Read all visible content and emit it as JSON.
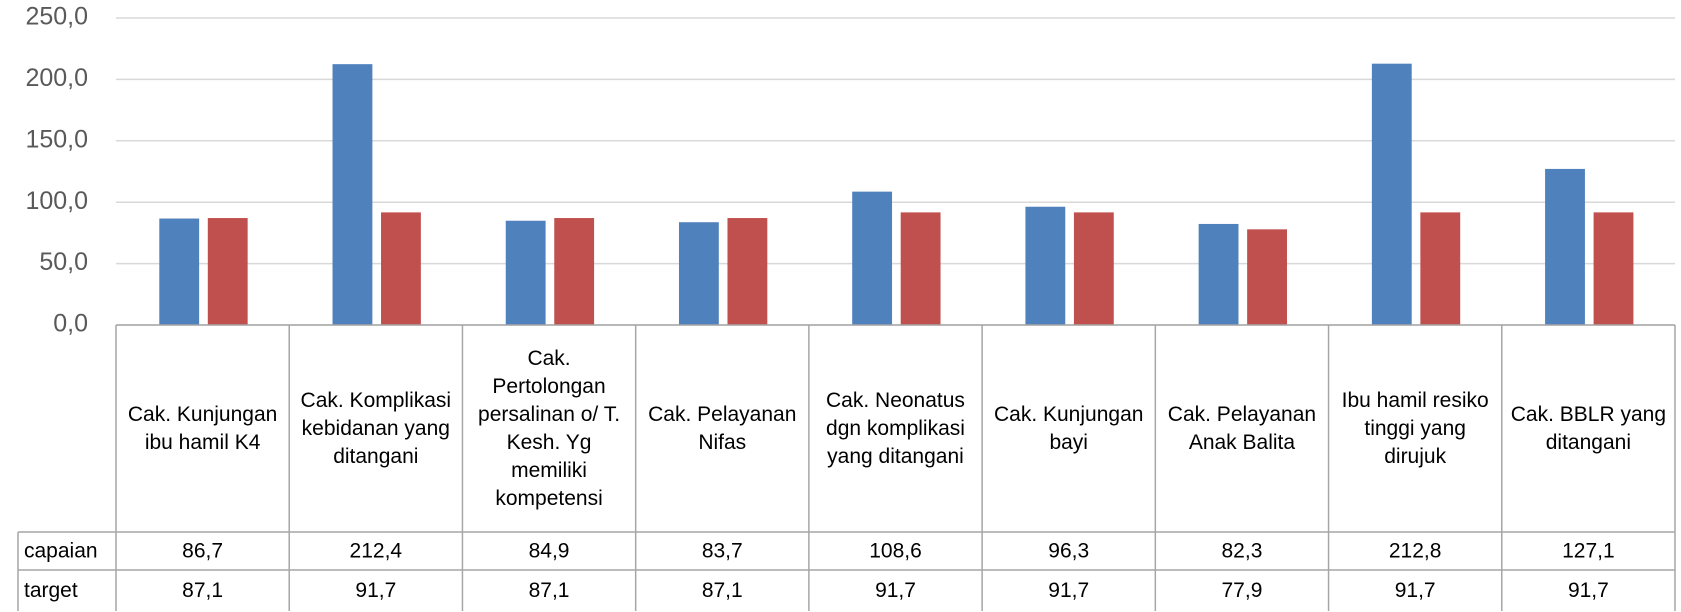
{
  "chart_data": {
    "type": "bar",
    "categories": [
      "Cak. Kunjungan ibu hamil K4",
      "Cak. Komplikasi kebidanan yang ditangani",
      "Cak. Pertolongan persalinan o/ T. Kesh. Yg memiliki kompetensi",
      "Cak. Pelayanan Nifas",
      "Cak. Neonatus dgn komplikasi yang ditangani",
      "Cak. Kunjungan bayi",
      "Cak. Pelayanan Anak Balita",
      "Ibu hamil resiko tinggi yang dirujuk",
      "Cak. BBLR yang ditangani"
    ],
    "series": [
      {
        "name": "capaian",
        "color": "#4f81bd",
        "values": [
          86.7,
          212.4,
          84.9,
          83.7,
          108.6,
          96.3,
          82.3,
          212.8,
          127.1
        ],
        "value_labels": [
          "86,7",
          "212,4",
          "84,9",
          "83,7",
          "108,6",
          "96,3",
          "82,3",
          "212,8",
          "127,1"
        ]
      },
      {
        "name": "target",
        "color": "#c0504d",
        "values": [
          87.1,
          91.7,
          87.1,
          87.1,
          91.7,
          91.7,
          77.9,
          91.7,
          91.7
        ],
        "value_labels": [
          "87,1",
          "91,7",
          "87,1",
          "87,1",
          "91,7",
          "91,7",
          "77,9",
          "91,7",
          "91,7"
        ]
      }
    ],
    "ylim": [
      0,
      250
    ],
    "yticks": [
      {
        "value": 0,
        "label": "0,0"
      },
      {
        "value": 50,
        "label": "50,0"
      },
      {
        "value": 100,
        "label": "100,0"
      },
      {
        "value": 150,
        "label": "150,0"
      },
      {
        "value": 200,
        "label": "200,0"
      },
      {
        "value": 250,
        "label": "250,0"
      }
    ],
    "grid": true
  }
}
